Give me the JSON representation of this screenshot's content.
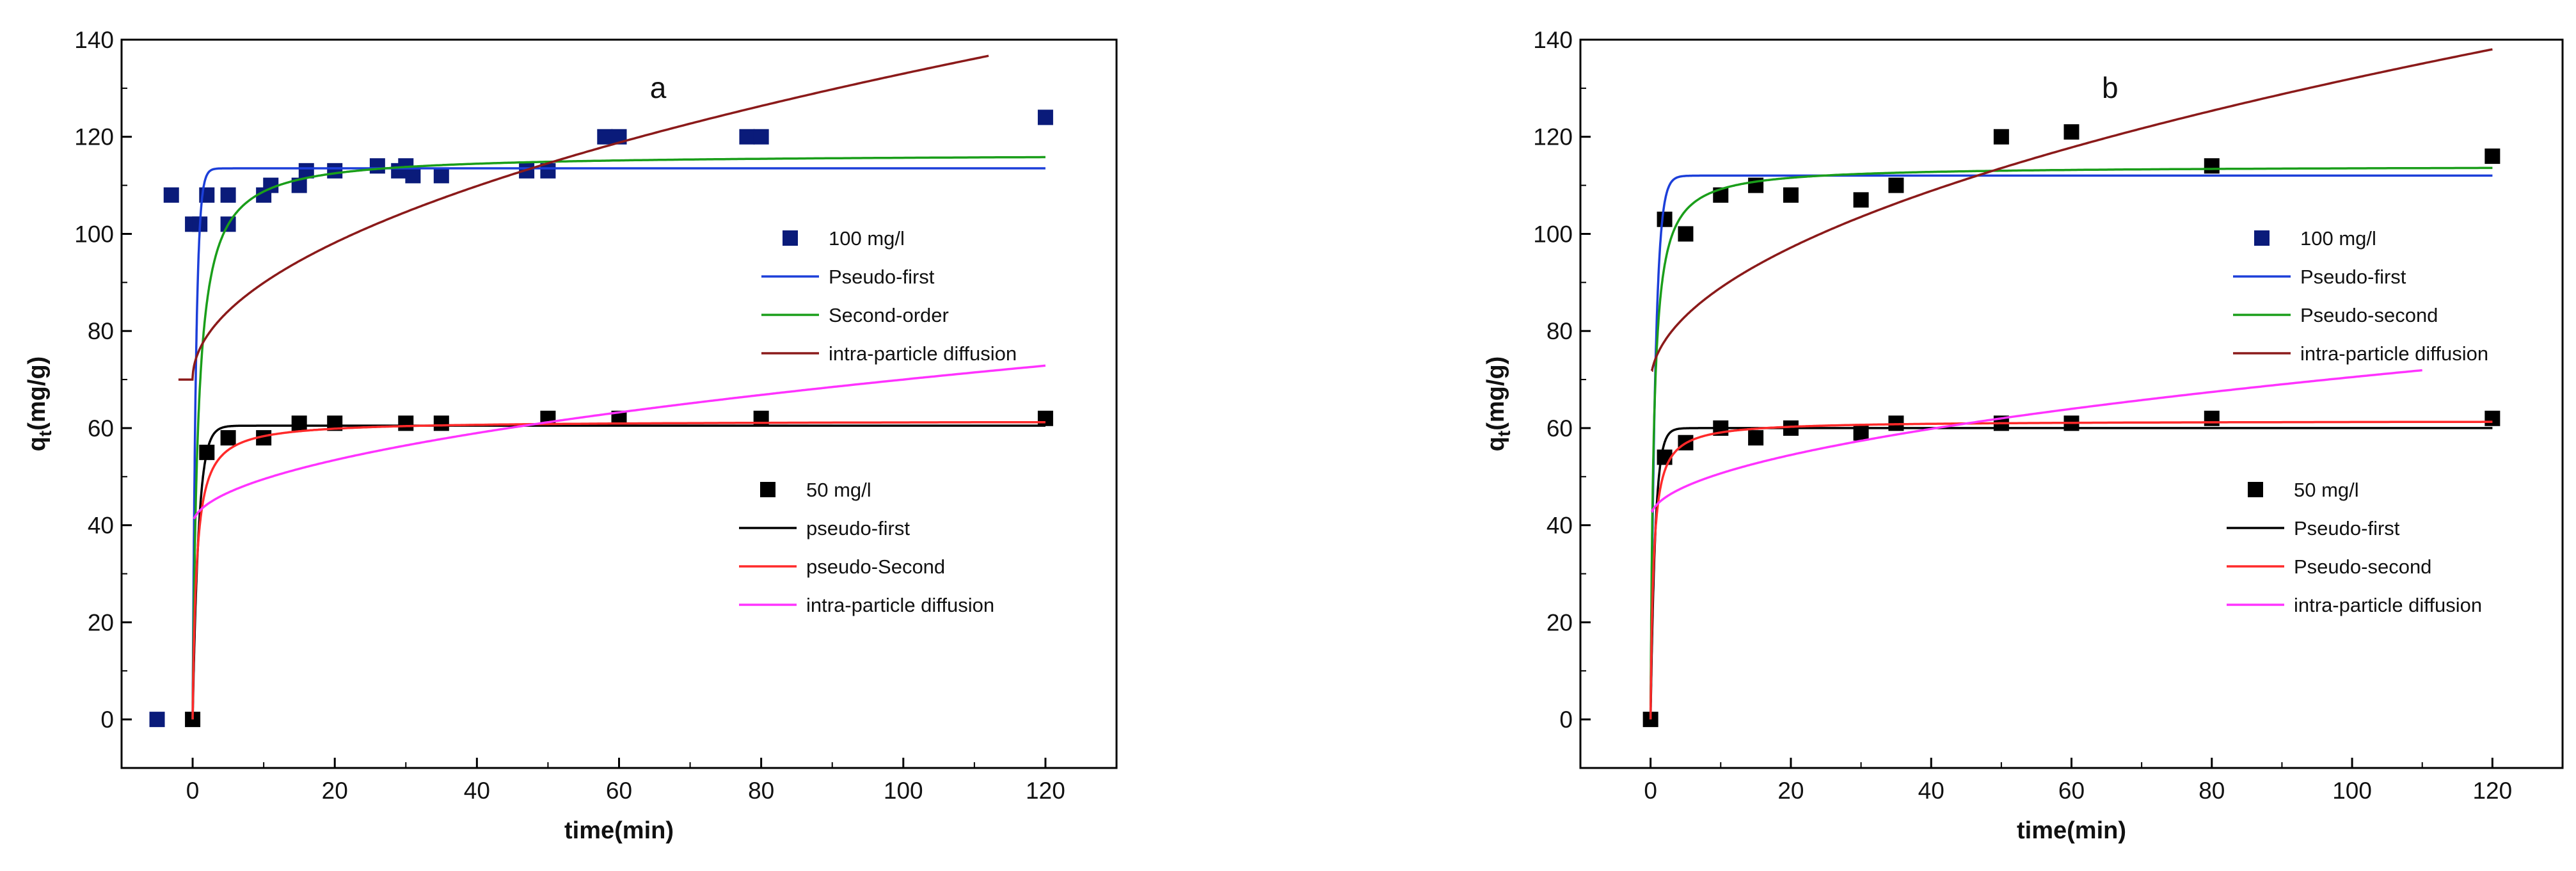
{
  "chart_data": [
    {
      "type": "scatter",
      "panel_label": "a",
      "xlabel": "time(min)",
      "ylabel_main": "q",
      "ylabel_sub": "t",
      "ylabel_unit": "(mg/g)",
      "xlim": [
        -10,
        130
      ],
      "ylim": [
        -10,
        140
      ],
      "xticks": [
        0,
        20,
        40,
        60,
        80,
        100,
        120
      ],
      "yticks": [
        0,
        20,
        40,
        60,
        80,
        100,
        120,
        140
      ],
      "legend_groups": [
        {
          "items": [
            {
              "kind": "marker",
              "label": "100 mg/l",
              "color": "#0a1b7a"
            },
            {
              "kind": "line",
              "label": "Pseudo-first",
              "color": "#1c3fd9"
            },
            {
              "kind": "line",
              "label": "Second-order",
              "color": "#1a9e1a"
            },
            {
              "kind": "line",
              "label": "intra-particle diffusion",
              "color": "#8b1a1a"
            }
          ]
        },
        {
          "items": [
            {
              "kind": "marker",
              "label": "50 mg/l",
              "color": "#000000"
            },
            {
              "kind": "line",
              "label": "pseudo-first",
              "color": "#000000"
            },
            {
              "kind": "line",
              "label": "pseudo-Second",
              "color": "#ff2a2a"
            },
            {
              "kind": "line",
              "label": "intra-particle diffusion",
              "color": "#ff33ff"
            }
          ]
        }
      ],
      "series": [
        {
          "name": "100 mg/l",
          "kind": "points",
          "color": "#0a1b7a",
          "x": [
            -5,
            -3,
            0,
            1,
            2,
            5,
            5,
            10,
            11,
            15,
            16,
            20,
            26,
            29,
            30,
            31,
            35,
            47,
            50,
            58,
            60,
            78,
            80,
            120
          ],
          "y": [
            0,
            108,
            102,
            102,
            108,
            108,
            102,
            108,
            110,
            110,
            113,
            113,
            114,
            113,
            114,
            112,
            112,
            113,
            113,
            120,
            120,
            120,
            120,
            124
          ]
        },
        {
          "name": "50 mg/l",
          "kind": "points",
          "color": "#000000",
          "x": [
            0,
            2,
            5,
            10,
            15,
            20,
            30,
            35,
            50,
            60,
            80,
            120
          ],
          "y": [
            0,
            55,
            58,
            58,
            61,
            61,
            61,
            61,
            62,
            62,
            62,
            62
          ]
        },
        {
          "name": "Pseudo-first (100)",
          "kind": "pfo",
          "color": "#1c3fd9",
          "qe": 113.5,
          "k": 2.2,
          "xmax": 120
        },
        {
          "name": "Second-order (100)",
          "kind": "pso",
          "color": "#1a9e1a",
          "qe": 116.5,
          "k": 0.012,
          "xmax": 120
        },
        {
          "name": "intra-particle diffusion (100)",
          "kind": "ipd",
          "color": "#8b1a1a",
          "kid": 6.3,
          "c": 70,
          "xmin": -2,
          "xmax": 112
        },
        {
          "name": "pseudo-first (50)",
          "kind": "pfo",
          "color": "#000000",
          "qe": 60.5,
          "k": 1.2,
          "xmax": 120
        },
        {
          "name": "pseudo-Second (50)",
          "kind": "pso",
          "color": "#ff2a2a",
          "qe": 61.5,
          "k": 0.03,
          "xmax": 120
        },
        {
          "name": "intra-particle diffusion (50)",
          "kind": "ipd",
          "color": "#ff33ff",
          "kid": 3.0,
          "c": 40,
          "xmin": 0.2,
          "xmax": 120
        }
      ]
    },
    {
      "type": "scatter",
      "panel_label": "b",
      "xlabel": "time(min)",
      "ylabel_main": "q",
      "ylabel_sub": "t",
      "ylabel_unit": "(mg/g)",
      "xlim": [
        -10,
        130
      ],
      "ylim": [
        -10,
        140
      ],
      "xticks": [
        0,
        20,
        40,
        60,
        80,
        100,
        120
      ],
      "yticks": [
        0,
        20,
        40,
        60,
        80,
        100,
        120,
        140
      ],
      "legend_groups": [
        {
          "items": [
            {
              "kind": "marker",
              "label": "100 mg/l",
              "color": "#0a1b7a"
            },
            {
              "kind": "line",
              "label": "Pseudo-first",
              "color": "#1c3fd9"
            },
            {
              "kind": "line",
              "label": "Pseudo-second",
              "color": "#1a9e1a"
            },
            {
              "kind": "line",
              "label": "intra-particle diffusion",
              "color": "#8b1a1a"
            }
          ]
        },
        {
          "items": [
            {
              "kind": "marker",
              "label": "50 mg/l",
              "color": "#000000"
            },
            {
              "kind": "line",
              "label": "Pseudo-first",
              "color": "#000000"
            },
            {
              "kind": "line",
              "label": "Pseudo-second",
              "color": "#ff2a2a"
            },
            {
              "kind": "line",
              "label": "intra-particle diffusion",
              "color": "#ff33ff"
            }
          ]
        }
      ],
      "series": [
        {
          "name": "100 mg/l",
          "kind": "points",
          "color": "#000000",
          "x": [
            0,
            2,
            5,
            10,
            15,
            20,
            30,
            35,
            50,
            60,
            80,
            120
          ],
          "y": [
            0,
            103,
            100,
            108,
            110,
            108,
            107,
            110,
            120,
            121,
            114,
            116
          ]
        },
        {
          "name": "50 mg/l",
          "kind": "points",
          "color": "#000000",
          "x": [
            2,
            5,
            10,
            15,
            20,
            30,
            35,
            50,
            60,
            80,
            120
          ],
          "y": [
            54,
            57,
            60,
            58,
            60,
            59,
            61,
            61,
            61,
            62,
            62
          ]
        },
        {
          "name": "Pseudo-first (100)",
          "kind": "pfo",
          "color": "#1c3fd9",
          "qe": 112,
          "k": 1.5,
          "xmax": 120
        },
        {
          "name": "Pseudo-second (100)",
          "kind": "pso",
          "color": "#1a9e1a",
          "qe": 114,
          "k": 0.02,
          "xmax": 120
        },
        {
          "name": "intra-particle diffusion (100)",
          "kind": "ipd",
          "color": "#8b1a1a",
          "kid": 6.3,
          "c": 69,
          "xmin": 0.2,
          "xmax": 120
        },
        {
          "name": "Pseudo-first (50)",
          "kind": "pfo",
          "color": "#000000",
          "qe": 60,
          "k": 1.5,
          "xmax": 120
        },
        {
          "name": "Pseudo-second (50)",
          "kind": "pso",
          "color": "#ff2a2a",
          "qe": 61.5,
          "k": 0.04,
          "xmax": 120
        },
        {
          "name": "intra-particle diffusion (50)",
          "kind": "ipd",
          "color": "#ff33ff",
          "kid": 2.9,
          "c": 41.5,
          "xmin": 0.2,
          "xmax": 110
        }
      ]
    }
  ]
}
